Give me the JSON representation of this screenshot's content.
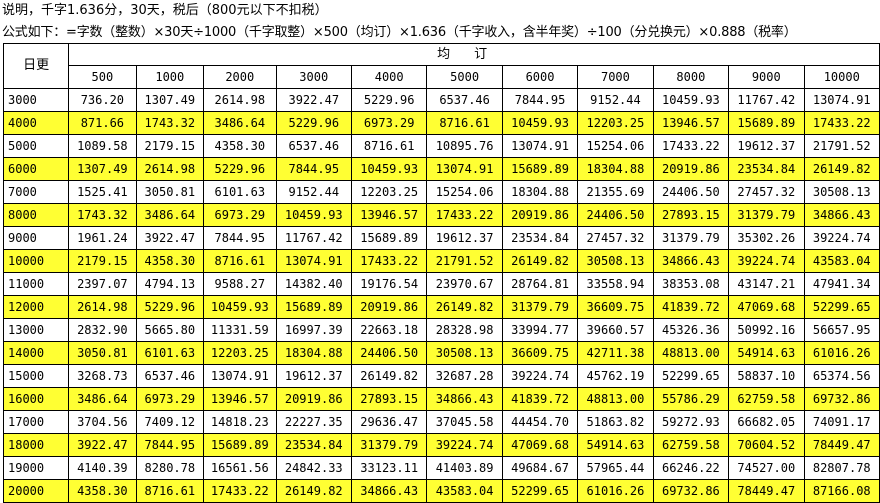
{
  "header": {
    "note": "说明，千字1.636分，30天，税后（800元以下不扣税）",
    "formula": "公式如下：=字数（整数）×30天÷1000（千字取整）×500（均订）×1.636（千字收入，含半年奖）÷100（分兑换元）×0.888（税率）"
  },
  "table": {
    "row_header": "日更",
    "group_header": "均订",
    "columns": [
      "500",
      "1000",
      "2000",
      "3000",
      "4000",
      "5000",
      "6000",
      "7000",
      "8000",
      "9000",
      "10000"
    ],
    "highlight_color": "#ffff33",
    "rows": [
      {
        "daily": "3000",
        "values": [
          "736.20",
          "1307.49",
          "2614.98",
          "3922.47",
          "5229.96",
          "6537.46",
          "7844.95",
          "9152.44",
          "10459.93",
          "11767.42",
          "13074.91"
        ],
        "highlight": false
      },
      {
        "daily": "4000",
        "values": [
          "871.66",
          "1743.32",
          "3486.64",
          "5229.96",
          "6973.29",
          "8716.61",
          "10459.93",
          "12203.25",
          "13946.57",
          "15689.89",
          "17433.22"
        ],
        "highlight": true
      },
      {
        "daily": "5000",
        "values": [
          "1089.58",
          "2179.15",
          "4358.30",
          "6537.46",
          "8716.61",
          "10895.76",
          "13074.91",
          "15254.06",
          "17433.22",
          "19612.37",
          "21791.52"
        ],
        "highlight": false
      },
      {
        "daily": "6000",
        "values": [
          "1307.49",
          "2614.98",
          "5229.96",
          "7844.95",
          "10459.93",
          "13074.91",
          "15689.89",
          "18304.88",
          "20919.86",
          "23534.84",
          "26149.82"
        ],
        "highlight": true
      },
      {
        "daily": "7000",
        "values": [
          "1525.41",
          "3050.81",
          "6101.63",
          "9152.44",
          "12203.25",
          "15254.06",
          "18304.88",
          "21355.69",
          "24406.50",
          "27457.32",
          "30508.13"
        ],
        "highlight": false
      },
      {
        "daily": "8000",
        "values": [
          "1743.32",
          "3486.64",
          "6973.29",
          "10459.93",
          "13946.57",
          "17433.22",
          "20919.86",
          "24406.50",
          "27893.15",
          "31379.79",
          "34866.43"
        ],
        "highlight": true
      },
      {
        "daily": "9000",
        "values": [
          "1961.24",
          "3922.47",
          "7844.95",
          "11767.42",
          "15689.89",
          "19612.37",
          "23534.84",
          "27457.32",
          "31379.79",
          "35302.26",
          "39224.74"
        ],
        "highlight": false
      },
      {
        "daily": "10000",
        "values": [
          "2179.15",
          "4358.30",
          "8716.61",
          "13074.91",
          "17433.22",
          "21791.52",
          "26149.82",
          "30508.13",
          "34866.43",
          "39224.74",
          "43583.04"
        ],
        "highlight": true
      },
      {
        "daily": "11000",
        "values": [
          "2397.07",
          "4794.13",
          "9588.27",
          "14382.40",
          "19176.54",
          "23970.67",
          "28764.81",
          "33558.94",
          "38353.08",
          "43147.21",
          "47941.34"
        ],
        "highlight": false
      },
      {
        "daily": "12000",
        "values": [
          "2614.98",
          "5229.96",
          "10459.93",
          "15689.89",
          "20919.86",
          "26149.82",
          "31379.79",
          "36609.75",
          "41839.72",
          "47069.68",
          "52299.65"
        ],
        "highlight": true
      },
      {
        "daily": "13000",
        "values": [
          "2832.90",
          "5665.80",
          "11331.59",
          "16997.39",
          "22663.18",
          "28328.98",
          "33994.77",
          "39660.57",
          "45326.36",
          "50992.16",
          "56657.95"
        ],
        "highlight": false
      },
      {
        "daily": "14000",
        "values": [
          "3050.81",
          "6101.63",
          "12203.25",
          "18304.88",
          "24406.50",
          "30508.13",
          "36609.75",
          "42711.38",
          "48813.00",
          "54914.63",
          "61016.26"
        ],
        "highlight": true
      },
      {
        "daily": "15000",
        "values": [
          "3268.73",
          "6537.46",
          "13074.91",
          "19612.37",
          "26149.82",
          "32687.28",
          "39224.74",
          "45762.19",
          "52299.65",
          "58837.10",
          "65374.56"
        ],
        "highlight": false
      },
      {
        "daily": "16000",
        "values": [
          "3486.64",
          "6973.29",
          "13946.57",
          "20919.86",
          "27893.15",
          "34866.43",
          "41839.72",
          "48813.00",
          "55786.29",
          "62759.58",
          "69732.86"
        ],
        "highlight": true
      },
      {
        "daily": "17000",
        "values": [
          "3704.56",
          "7409.12",
          "14818.23",
          "22227.35",
          "29636.47",
          "37045.58",
          "44454.70",
          "51863.82",
          "59272.93",
          "66682.05",
          "74091.17"
        ],
        "highlight": false
      },
      {
        "daily": "18000",
        "values": [
          "3922.47",
          "7844.95",
          "15689.89",
          "23534.84",
          "31379.79",
          "39224.74",
          "47069.68",
          "54914.63",
          "62759.58",
          "70604.52",
          "78449.47"
        ],
        "highlight": true
      },
      {
        "daily": "19000",
        "values": [
          "4140.39",
          "8280.78",
          "16561.56",
          "24842.33",
          "33123.11",
          "41403.89",
          "49684.67",
          "57965.44",
          "66246.22",
          "74527.00",
          "82807.78"
        ],
        "highlight": false
      },
      {
        "daily": "20000",
        "values": [
          "4358.30",
          "8716.61",
          "17433.22",
          "26149.82",
          "34866.43",
          "43583.04",
          "52299.65",
          "61016.26",
          "69732.86",
          "78449.47",
          "87166.08"
        ],
        "highlight": true
      }
    ]
  }
}
